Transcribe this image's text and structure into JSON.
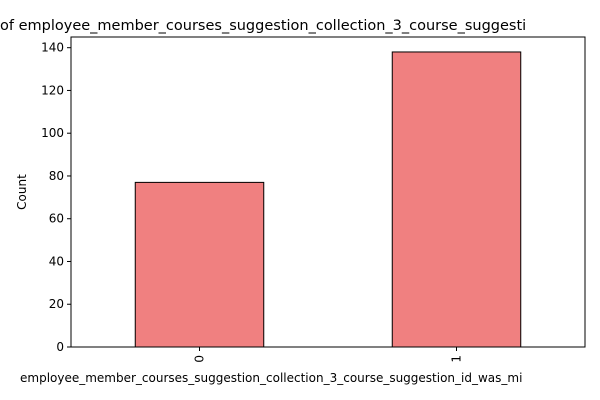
{
  "chart_data": {
    "type": "bar",
    "title": "of employee_member_courses_suggestion_collection_3_course_suggesti",
    "xlabel": "employee_member_courses_suggestion_collection_3_course_suggestion_id_was_mi",
    "ylabel": "Count",
    "categories": [
      "0",
      "1"
    ],
    "values": [
      77,
      138
    ],
    "ylim": [
      0,
      145
    ],
    "yticks": [
      0,
      20,
      40,
      60,
      80,
      100,
      120,
      140
    ],
    "grid": false,
    "legend": "none",
    "bar_color": "#f08080",
    "edge_color": "#000000"
  }
}
